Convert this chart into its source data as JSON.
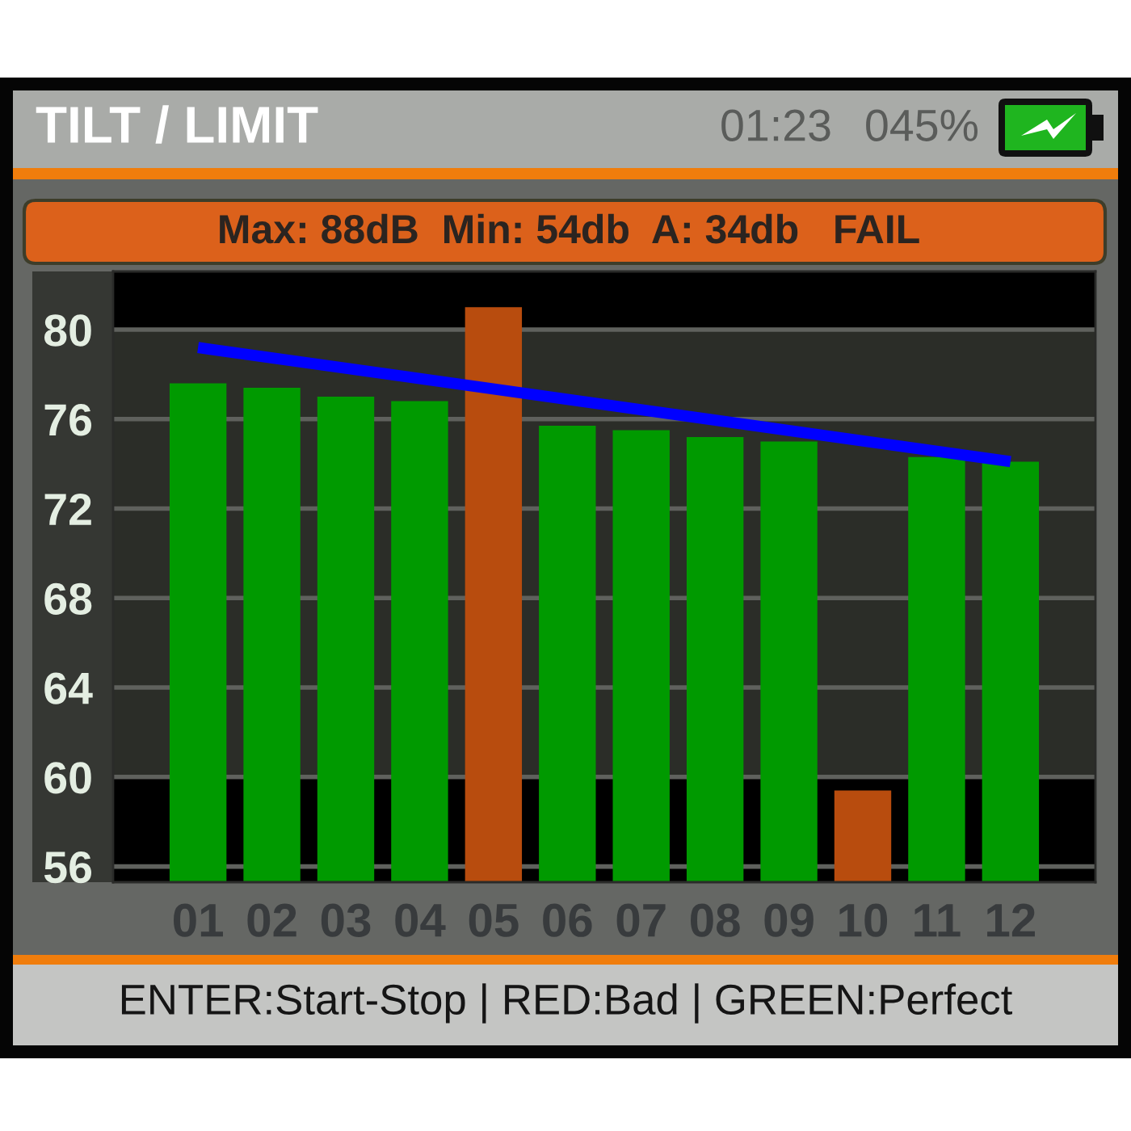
{
  "chart_data": {
    "type": "bar",
    "title": "TILT / LIMIT",
    "subtitle": "Max: 88dB  Min: 54db  A: 34db   FAIL",
    "annotations": [
      "01:23",
      "045%",
      "ENTER:Start-Stop | RED:Bad | GREEN:Perfect"
    ],
    "categories": [
      "01",
      "02",
      "03",
      "04",
      "05",
      "06",
      "07",
      "08",
      "09",
      "10",
      "11",
      "12"
    ],
    "series": [
      {
        "values": [
          77.6,
          77.4,
          77.0,
          76.8,
          81.0,
          75.7,
          75.5,
          75.2,
          75.0,
          59.4,
          74.3,
          74.1
        ],
        "colors": [
          "#009a00",
          "#009a00",
          "#009a00",
          "#009a00",
          "#b84c0e",
          "#009a00",
          "#009a00",
          "#009a00",
          "#009a00",
          "#b84c0e",
          "#009a00",
          "#009a00"
        ]
      },
      {
        "type": "line",
        "x": [
          "01",
          "12"
        ],
        "values": [
          79.2,
          74.1
        ],
        "color": "#0000ff"
      }
    ],
    "ylim": [
      55.3,
      82.6
    ],
    "yticks": [
      56,
      60,
      64,
      68,
      72,
      76,
      80
    ],
    "grid": "y",
    "bands": [
      {
        "axis": "y",
        "from": 60,
        "to": 80,
        "color": "#2b2d28"
      }
    ]
  }
}
